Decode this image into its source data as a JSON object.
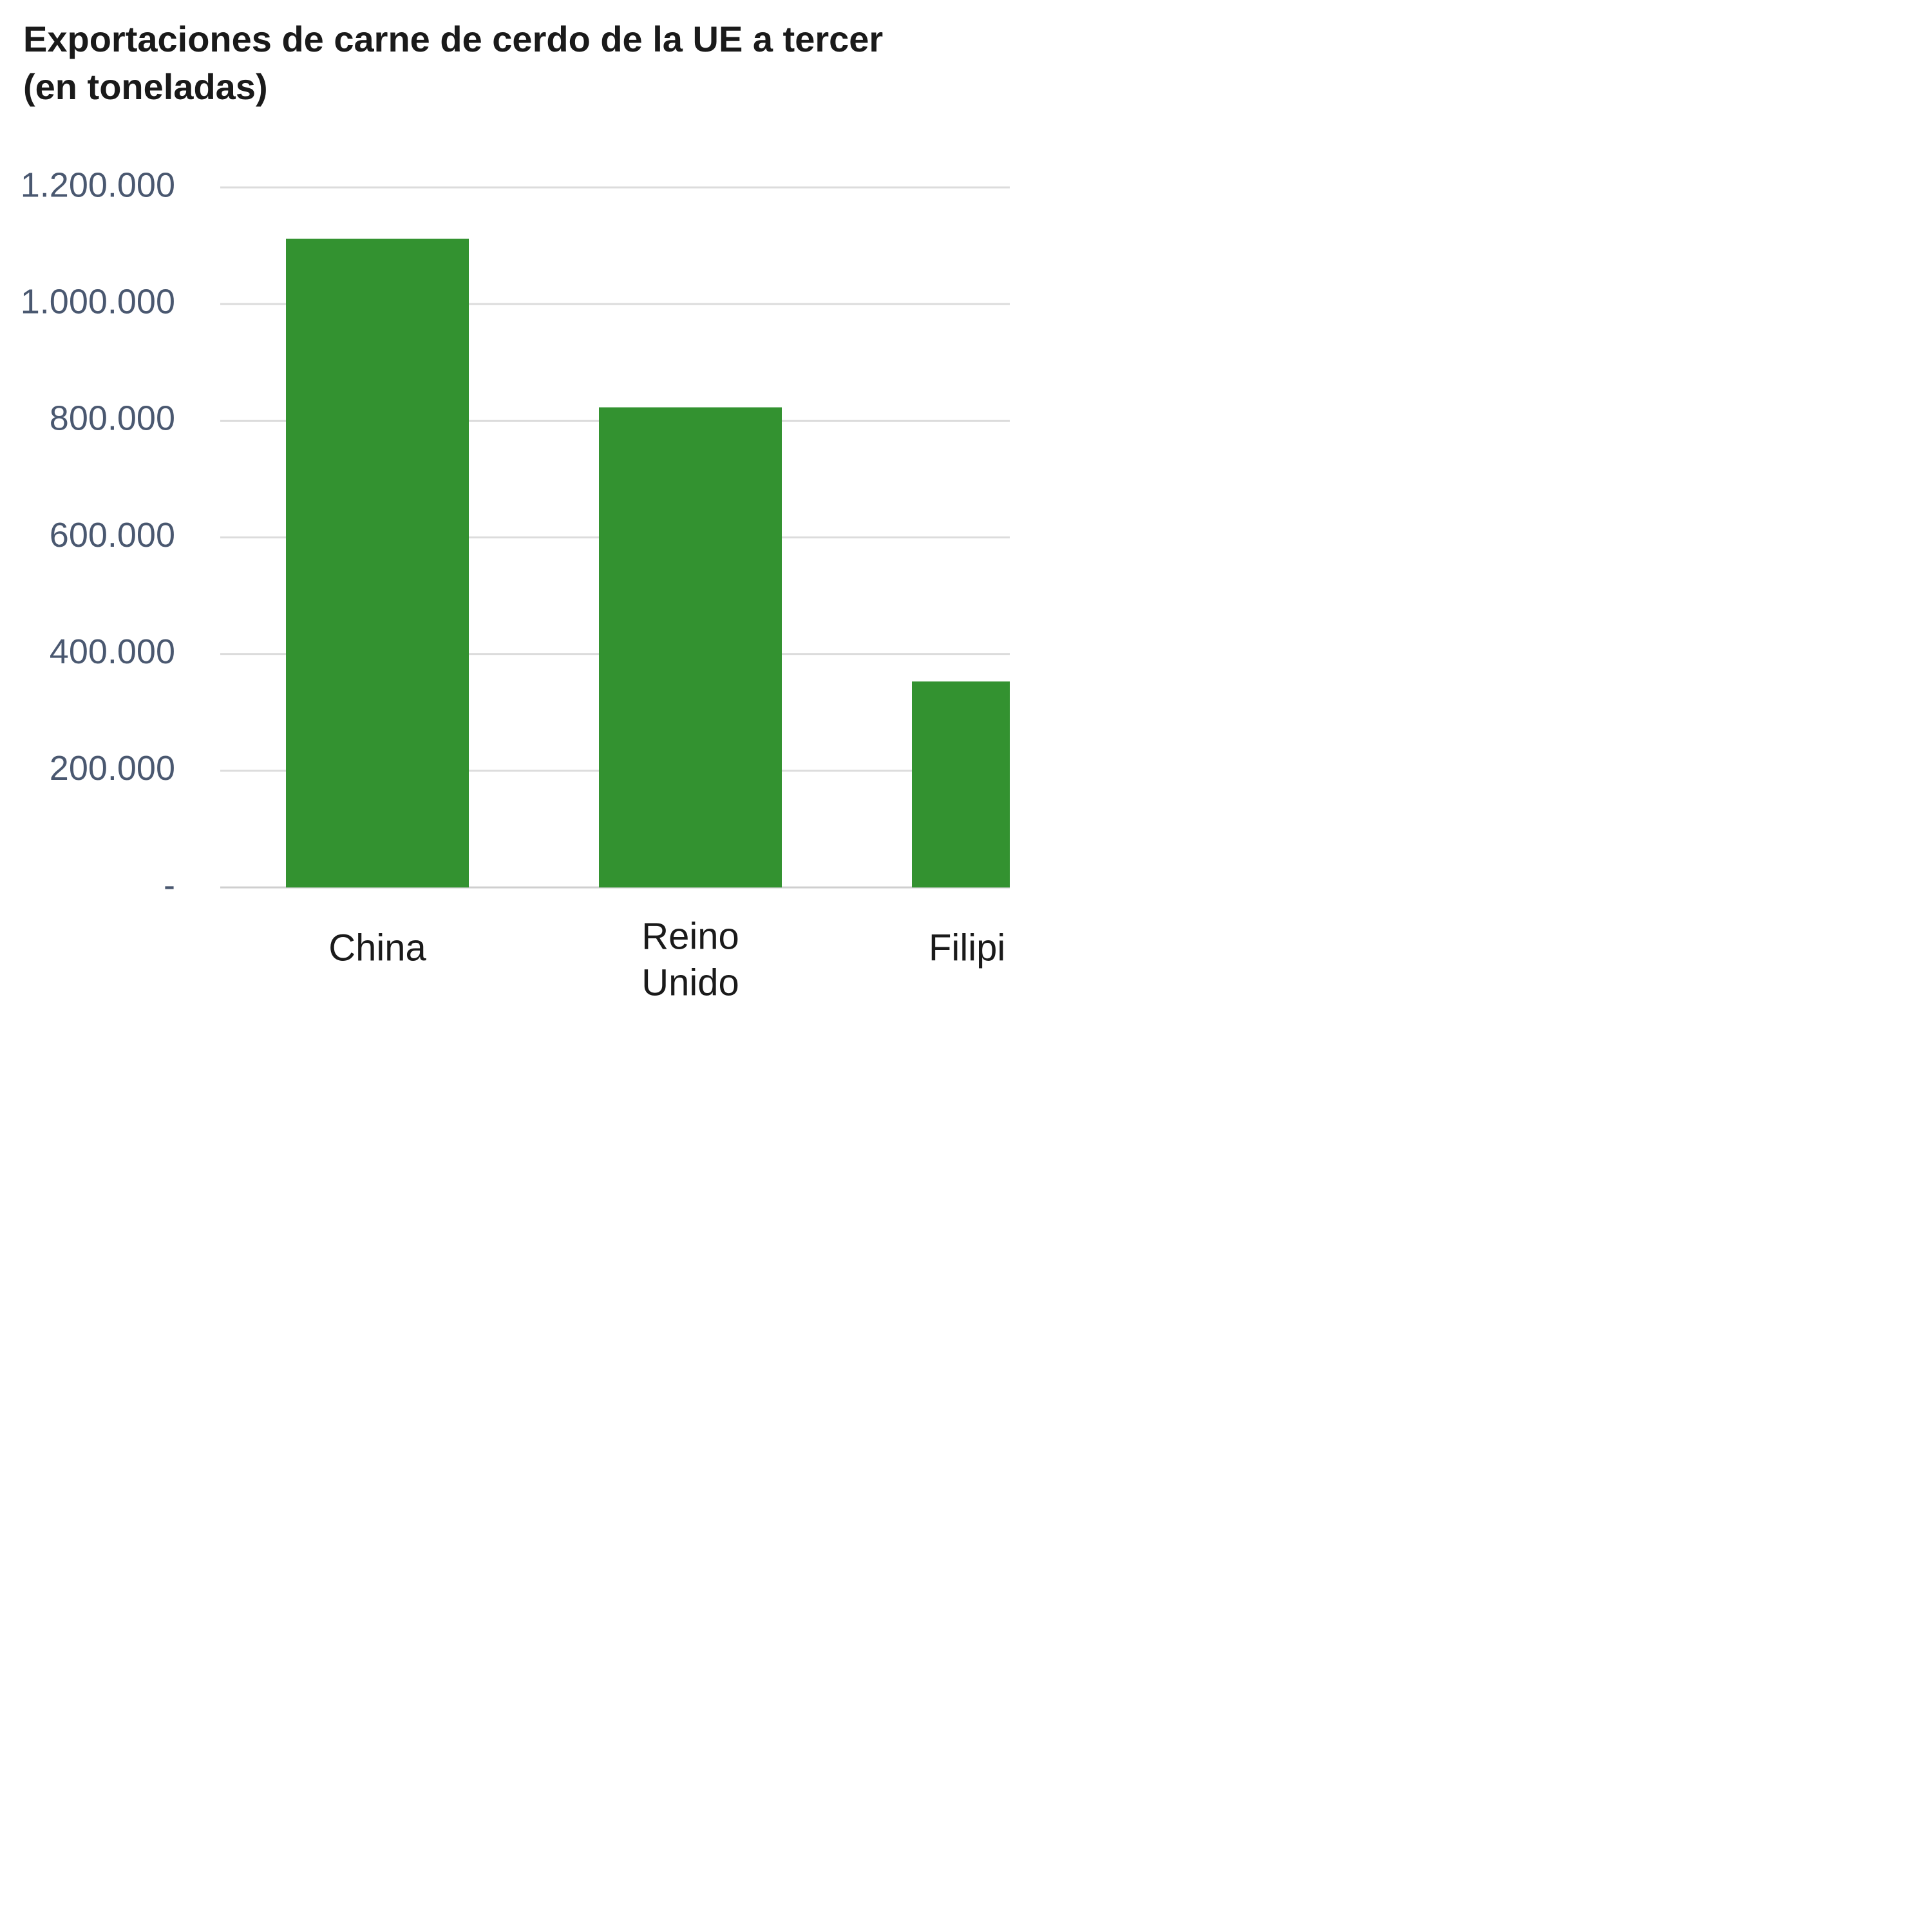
{
  "chart_data": {
    "type": "bar",
    "title_lines": [
      "Exportaciones de carne de cerdo de la UE a tercer",
      "(en toneladas)"
    ],
    "categories": [
      [
        "China"
      ],
      [
        "Reino",
        "Unido"
      ],
      [
        "Filipi"
      ]
    ],
    "values": [
      1112000,
      823000,
      353000
    ],
    "yticks": [
      "-",
      "200.000",
      "400.000",
      "600.000",
      "800.000",
      "1.000.000",
      "1.200.000"
    ],
    "ylim": [
      0,
      1200000
    ],
    "grid": true,
    "bar_color": "#339230"
  }
}
